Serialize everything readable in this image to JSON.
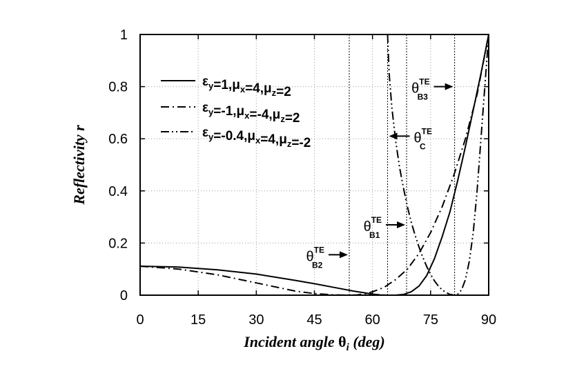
{
  "chart_data": {
    "type": "line",
    "xlabel": "Incident angle θi (deg)",
    "xlabel_main": "Incident angle ",
    "xlabel_symbol": "θ",
    "xlabel_sub": "i",
    "xlabel_tail": " (deg)",
    "ylabel": "Reflectivity r",
    "xlim": [
      0,
      90
    ],
    "ylim": [
      0,
      1
    ],
    "xticks": [
      0,
      15,
      30,
      45,
      60,
      75,
      90
    ],
    "yticks": [
      0,
      0.2,
      0.4,
      0.6,
      0.8,
      1
    ],
    "xtick_labels": [
      "0",
      "15",
      "30",
      "45",
      "60",
      "75",
      "90"
    ],
    "ytick_labels": [
      "0",
      "0.2",
      "0.4",
      "0.6",
      "0.8",
      "1"
    ],
    "grid": true,
    "legend_position": "top-left",
    "series": [
      {
        "name": "εy=1,μx=4,μz=2",
        "style": "solid",
        "x": [
          0,
          10,
          20,
          30,
          40,
          45,
          50,
          55,
          58,
          60,
          62,
          64,
          66,
          68,
          70,
          72,
          74,
          76,
          78,
          80,
          82,
          84,
          86,
          88,
          90
        ],
        "y": [
          0.111,
          0.108,
          0.097,
          0.081,
          0.057,
          0.044,
          0.03,
          0.016,
          0.009,
          0.004,
          0.001,
          0.0,
          0.0,
          0.003,
          0.013,
          0.035,
          0.075,
          0.14,
          0.225,
          0.32,
          0.44,
          0.57,
          0.71,
          0.85,
          1.0
        ]
      },
      {
        "name": "εy=-1,μx=-4,μz=2",
        "style": "dashdot",
        "x": [
          0,
          10,
          20,
          30,
          40,
          45,
          50,
          54,
          56,
          58,
          60,
          63,
          66,
          69,
          72,
          75,
          78,
          81,
          84,
          87,
          90
        ],
        "y": [
          0.111,
          0.1,
          0.078,
          0.047,
          0.016,
          0.006,
          0.001,
          0.0,
          0.001,
          0.005,
          0.013,
          0.03,
          0.06,
          0.1,
          0.16,
          0.24,
          0.34,
          0.46,
          0.6,
          0.77,
          1.0
        ]
      },
      {
        "name": "εy=-0.4,μx=4,μz=-2",
        "style": "dashdotdot",
        "x": [
          63.9,
          64.3,
          65,
          66,
          67,
          68,
          69,
          70,
          71,
          72,
          73,
          74,
          75,
          76,
          77,
          78,
          79,
          80,
          81.2,
          82,
          83,
          84,
          85,
          86,
          87,
          88,
          89,
          90
        ],
        "y": [
          1.0,
          0.85,
          0.72,
          0.59,
          0.49,
          0.41,
          0.34,
          0.28,
          0.23,
          0.185,
          0.145,
          0.11,
          0.08,
          0.055,
          0.035,
          0.02,
          0.01,
          0.003,
          0.0,
          0.004,
          0.02,
          0.06,
          0.13,
          0.24,
          0.4,
          0.6,
          0.8,
          1.0
        ]
      }
    ],
    "vertical_lines": [
      54,
      63.9,
      68.8,
      81.2
    ],
    "annotations": [
      {
        "symbol": "θ",
        "sup": "TE",
        "sub": "B2",
        "x_line": 54,
        "y": 0.155,
        "arrow": "right"
      },
      {
        "symbol": "θ",
        "sup": "TE",
        "sub": "B1",
        "x_line": 68.8,
        "y": 0.27,
        "arrow": "right"
      },
      {
        "symbol": "θ",
        "sup": "TE",
        "sub": "C",
        "x_line": 63.9,
        "y": 0.61,
        "arrow": "left"
      },
      {
        "symbol": "θ",
        "sup": "TE",
        "sub": "B3",
        "x_line": 81.2,
        "y": 0.8,
        "arrow": "right"
      }
    ],
    "legend": [
      {
        "main": "ε",
        "sub": "y",
        "rest": [
          [
            "=1,μ",
            "x"
          ],
          [
            "=4,μ",
            "z"
          ],
          [
            "=2",
            ""
          ]
        ]
      },
      {
        "main": "ε",
        "sub": "y",
        "rest": [
          [
            "=-1,μ",
            "x"
          ],
          [
            "=-4,μ",
            "z"
          ],
          [
            "=2",
            ""
          ]
        ]
      },
      {
        "main": "ε",
        "sub": "y",
        "rest": [
          [
            "=-0.4,μ",
            "x"
          ],
          [
            "=4,μ",
            "z"
          ],
          [
            "=-2",
            ""
          ]
        ]
      }
    ]
  }
}
